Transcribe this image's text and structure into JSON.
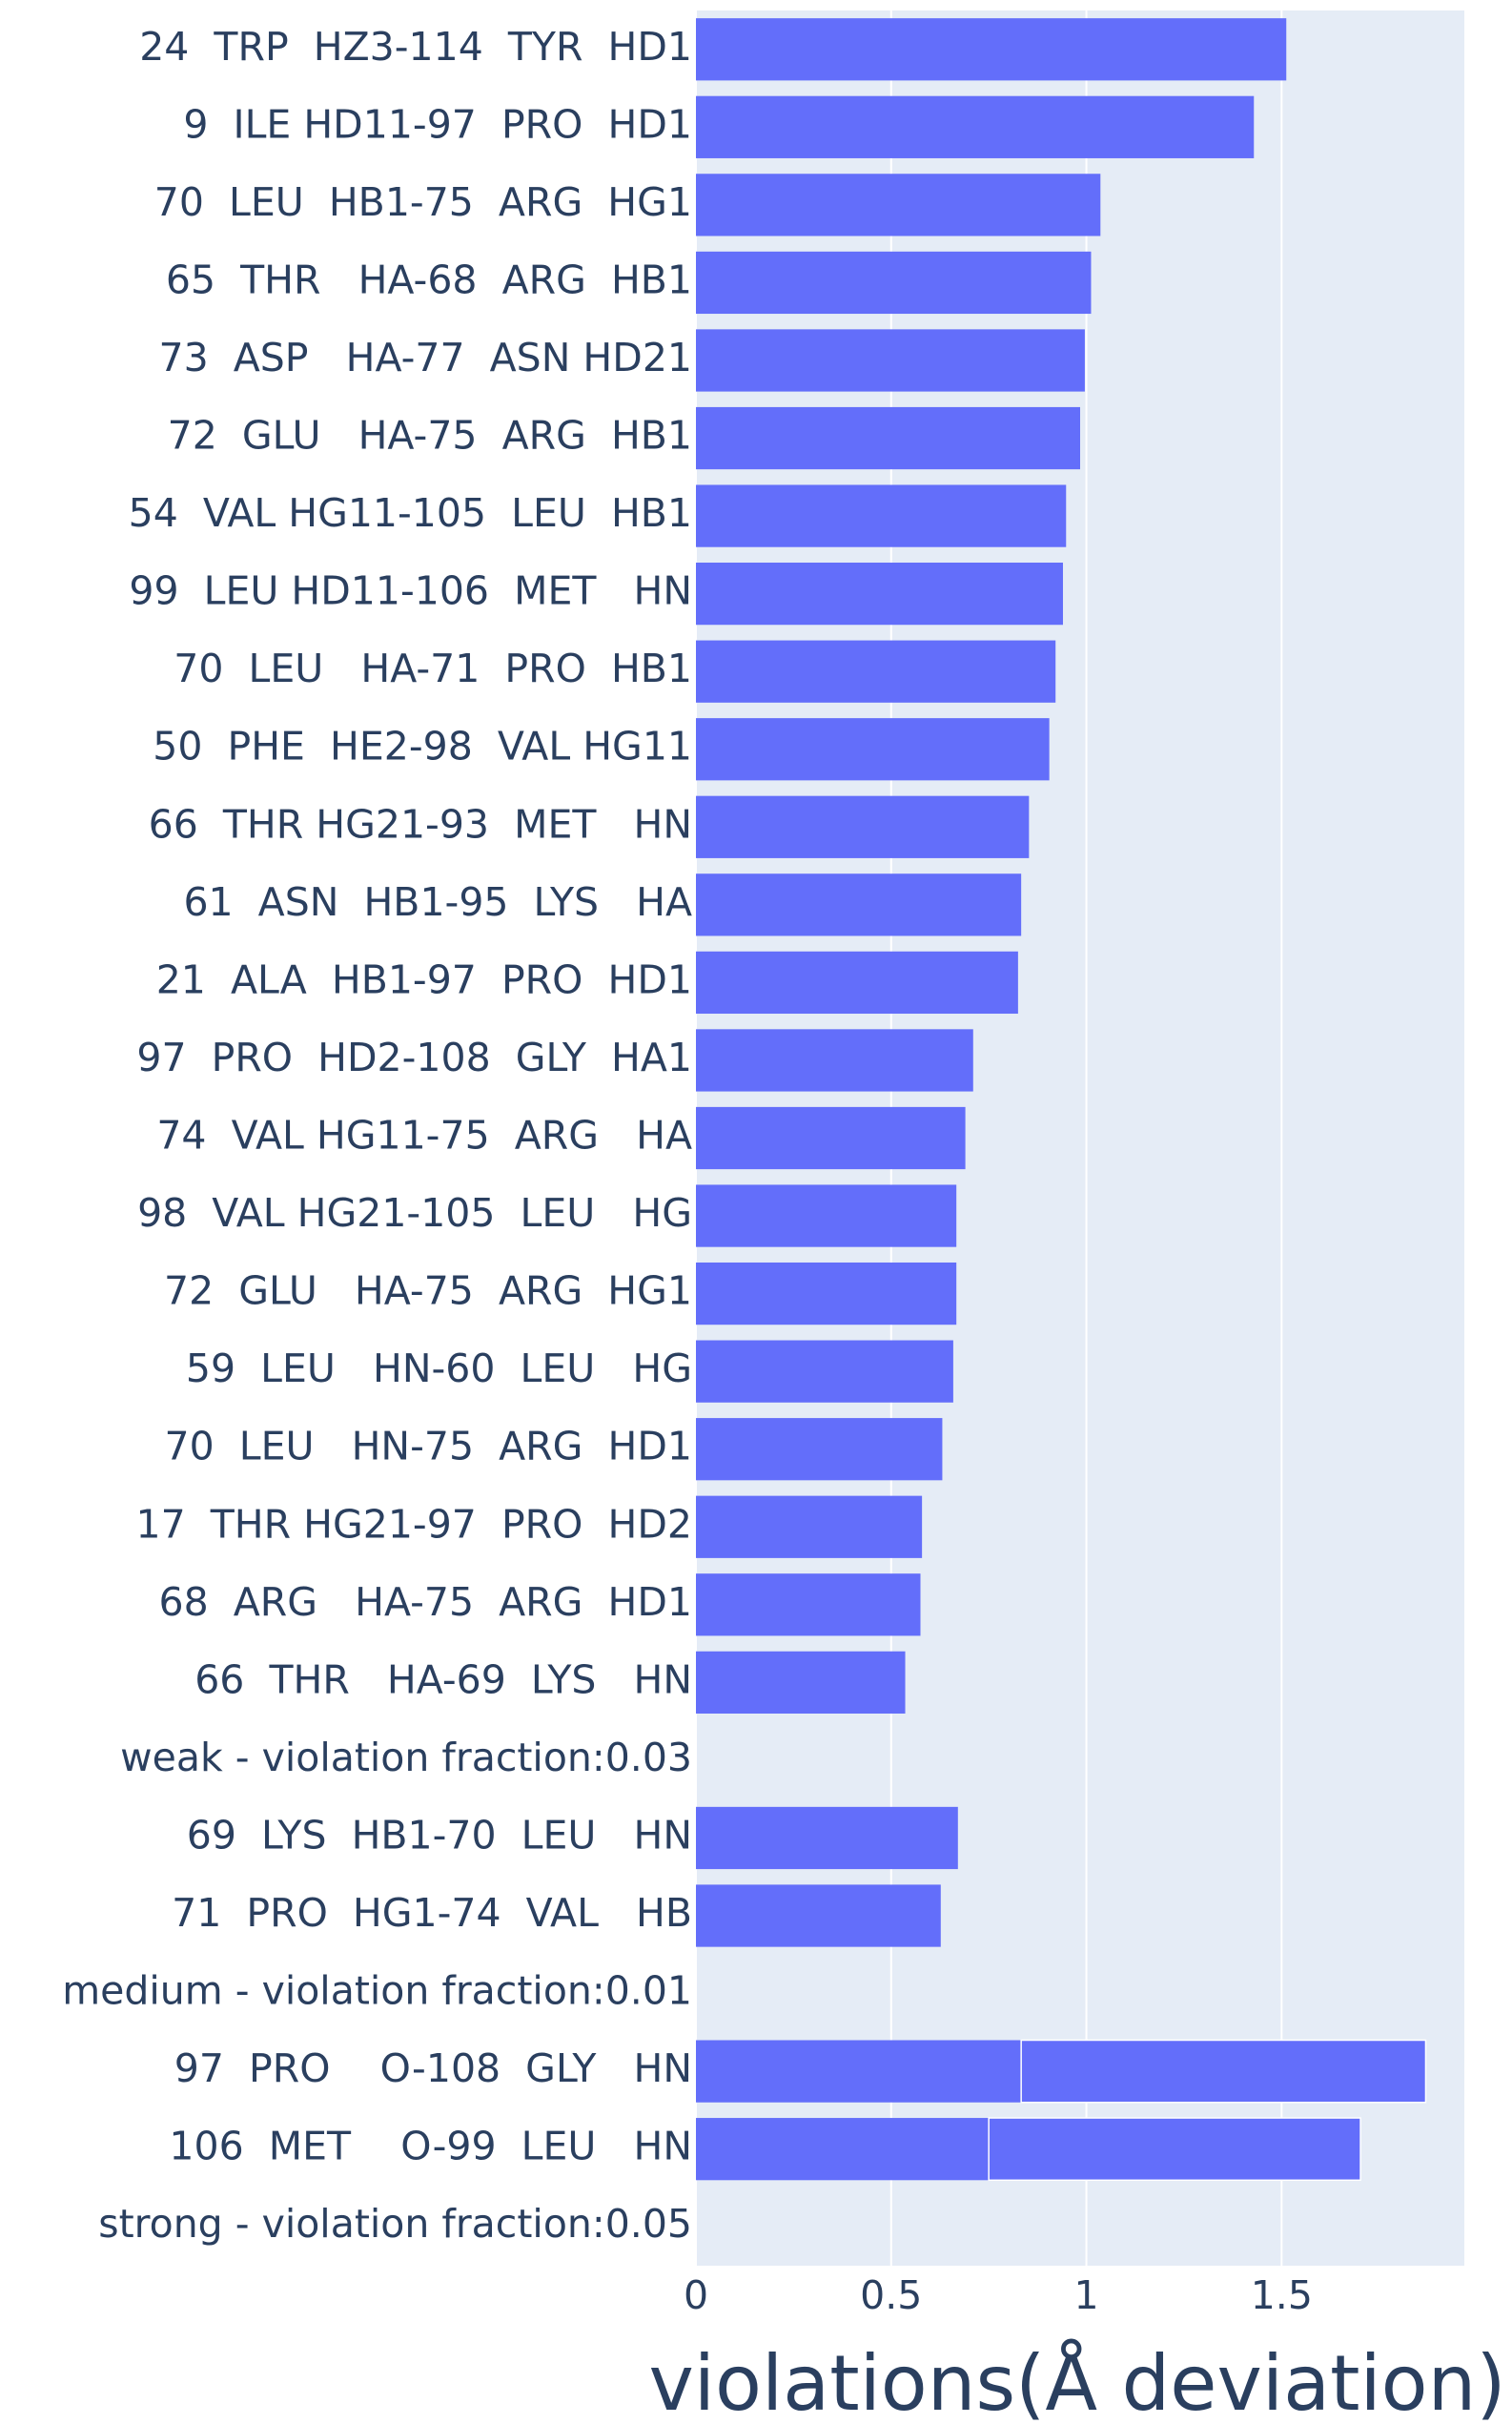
{
  "chart_data": {
    "type": "bar",
    "orientation": "horizontal",
    "stacked": true,
    "x_label": "violations(Å deviation)",
    "categories": [
      "24  TRP  HZ3-114  TYR  HD1",
      "9  ILE HD11-97  PRO  HD1",
      "70  LEU  HB1-75  ARG  HG1",
      "65  THR   HA-68  ARG  HB1",
      "73  ASP   HA-77  ASN HD21",
      "72  GLU   HA-75  ARG  HB1",
      "54  VAL HG11-105  LEU  HB1",
      "99  LEU HD11-106  MET   HN",
      "70  LEU   HA-71  PRO  HB1",
      "50  PHE  HE2-98  VAL HG11",
      "66  THR HG21-93  MET   HN",
      "61  ASN  HB1-95  LYS   HA",
      "21  ALA  HB1-97  PRO  HD1",
      "97  PRO  HD2-108  GLY  HA1",
      "74  VAL HG11-75  ARG   HA",
      "98  VAL HG21-105  LEU   HG",
      "72  GLU   HA-75  ARG  HG1",
      "59  LEU   HN-60  LEU   HG",
      "70  LEU   HN-75  ARG  HD1",
      "17  THR HG21-97  PRO  HD2",
      "68  ARG   HA-75  ARG  HD1",
      "66  THR   HA-69  LYS   HN",
      "weak - violation fraction:0.03",
      "69  LYS  HB1-70  LEU   HN",
      "71  PRO  HG1-74  VAL   HB",
      "medium - violation fraction:0.01",
      "97  PRO    O-108  GLY   HN",
      "106  MET    O-99  LEU   HN",
      "strong - violation fraction:0.05"
    ],
    "series": [
      {
        "color": "#636efa",
        "values": [
          1.512,
          1.429,
          1.036,
          1.012,
          0.996,
          0.984,
          0.948,
          0.94,
          0.921,
          0.905,
          0.853,
          0.833,
          0.825,
          0.71,
          0.69,
          0.667,
          0.667,
          0.659,
          0.631,
          0.579,
          0.575,
          0.536,
          null,
          0.671,
          0.627,
          null,
          0.833,
          0.75,
          null
        ]
      },
      {
        "color": "#636efa",
        "values": [
          null,
          null,
          null,
          null,
          null,
          null,
          null,
          null,
          null,
          null,
          null,
          null,
          null,
          null,
          null,
          null,
          null,
          null,
          null,
          null,
          null,
          null,
          null,
          null,
          null,
          null,
          1.036,
          0.952,
          null
        ]
      }
    ],
    "xlim": [
      0,
      1.968
    ],
    "xticks": [
      0,
      0.5,
      1,
      1.5
    ],
    "grid": true
  }
}
